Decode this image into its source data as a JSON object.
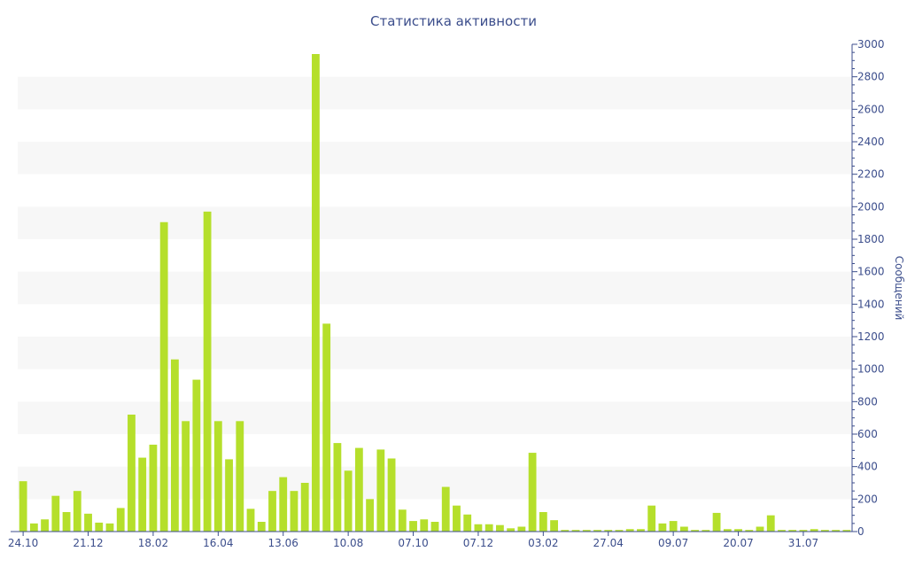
{
  "chart_data": {
    "type": "bar",
    "title": "Статистика активности",
    "xlabel": "",
    "ylabel": "Сообщений",
    "ylim": [
      0,
      3000
    ],
    "yticks": [
      0,
      200,
      400,
      600,
      800,
      1000,
      1200,
      1400,
      1600,
      1800,
      2000,
      2200,
      2400,
      2600,
      2800,
      3000
    ],
    "xtick_labels": [
      {
        "label": "24.10",
        "index": 0
      },
      {
        "label": "21.12",
        "index": 6
      },
      {
        "label": "18.02",
        "index": 12
      },
      {
        "label": "16.04",
        "index": 18
      },
      {
        "label": "13.06",
        "index": 24
      },
      {
        "label": "10.08",
        "index": 30
      },
      {
        "label": "07.10",
        "index": 36
      },
      {
        "label": "07.12",
        "index": 42
      },
      {
        "label": "03.02",
        "index": 48
      },
      {
        "label": "27.04",
        "index": 54
      },
      {
        "label": "09.07",
        "index": 60
      },
      {
        "label": "20.07",
        "index": 66
      },
      {
        "label": "31.07",
        "index": 72
      }
    ],
    "values": [
      310,
      50,
      75,
      220,
      120,
      250,
      110,
      55,
      50,
      145,
      720,
      455,
      535,
      1905,
      1060,
      680,
      935,
      1970,
      680,
      445,
      680,
      140,
      60,
      250,
      335,
      250,
      300,
      2940,
      1280,
      545,
      375,
      515,
      200,
      505,
      450,
      135,
      65,
      75,
      60,
      275,
      160,
      105,
      45,
      45,
      40,
      20,
      30,
      485,
      120,
      70,
      10,
      10,
      10,
      10,
      10,
      10,
      15,
      15,
      160,
      50,
      65,
      30,
      10,
      10,
      115,
      15,
      15,
      10,
      30,
      100,
      10,
      10,
      10,
      15,
      10,
      10,
      10
    ],
    "bar_color": "#b5df2b",
    "band_color": "#f7f7f7",
    "axis_color": "#3c4e8c",
    "grid": "alternating horizontal bands",
    "y_axis_side": "right"
  }
}
